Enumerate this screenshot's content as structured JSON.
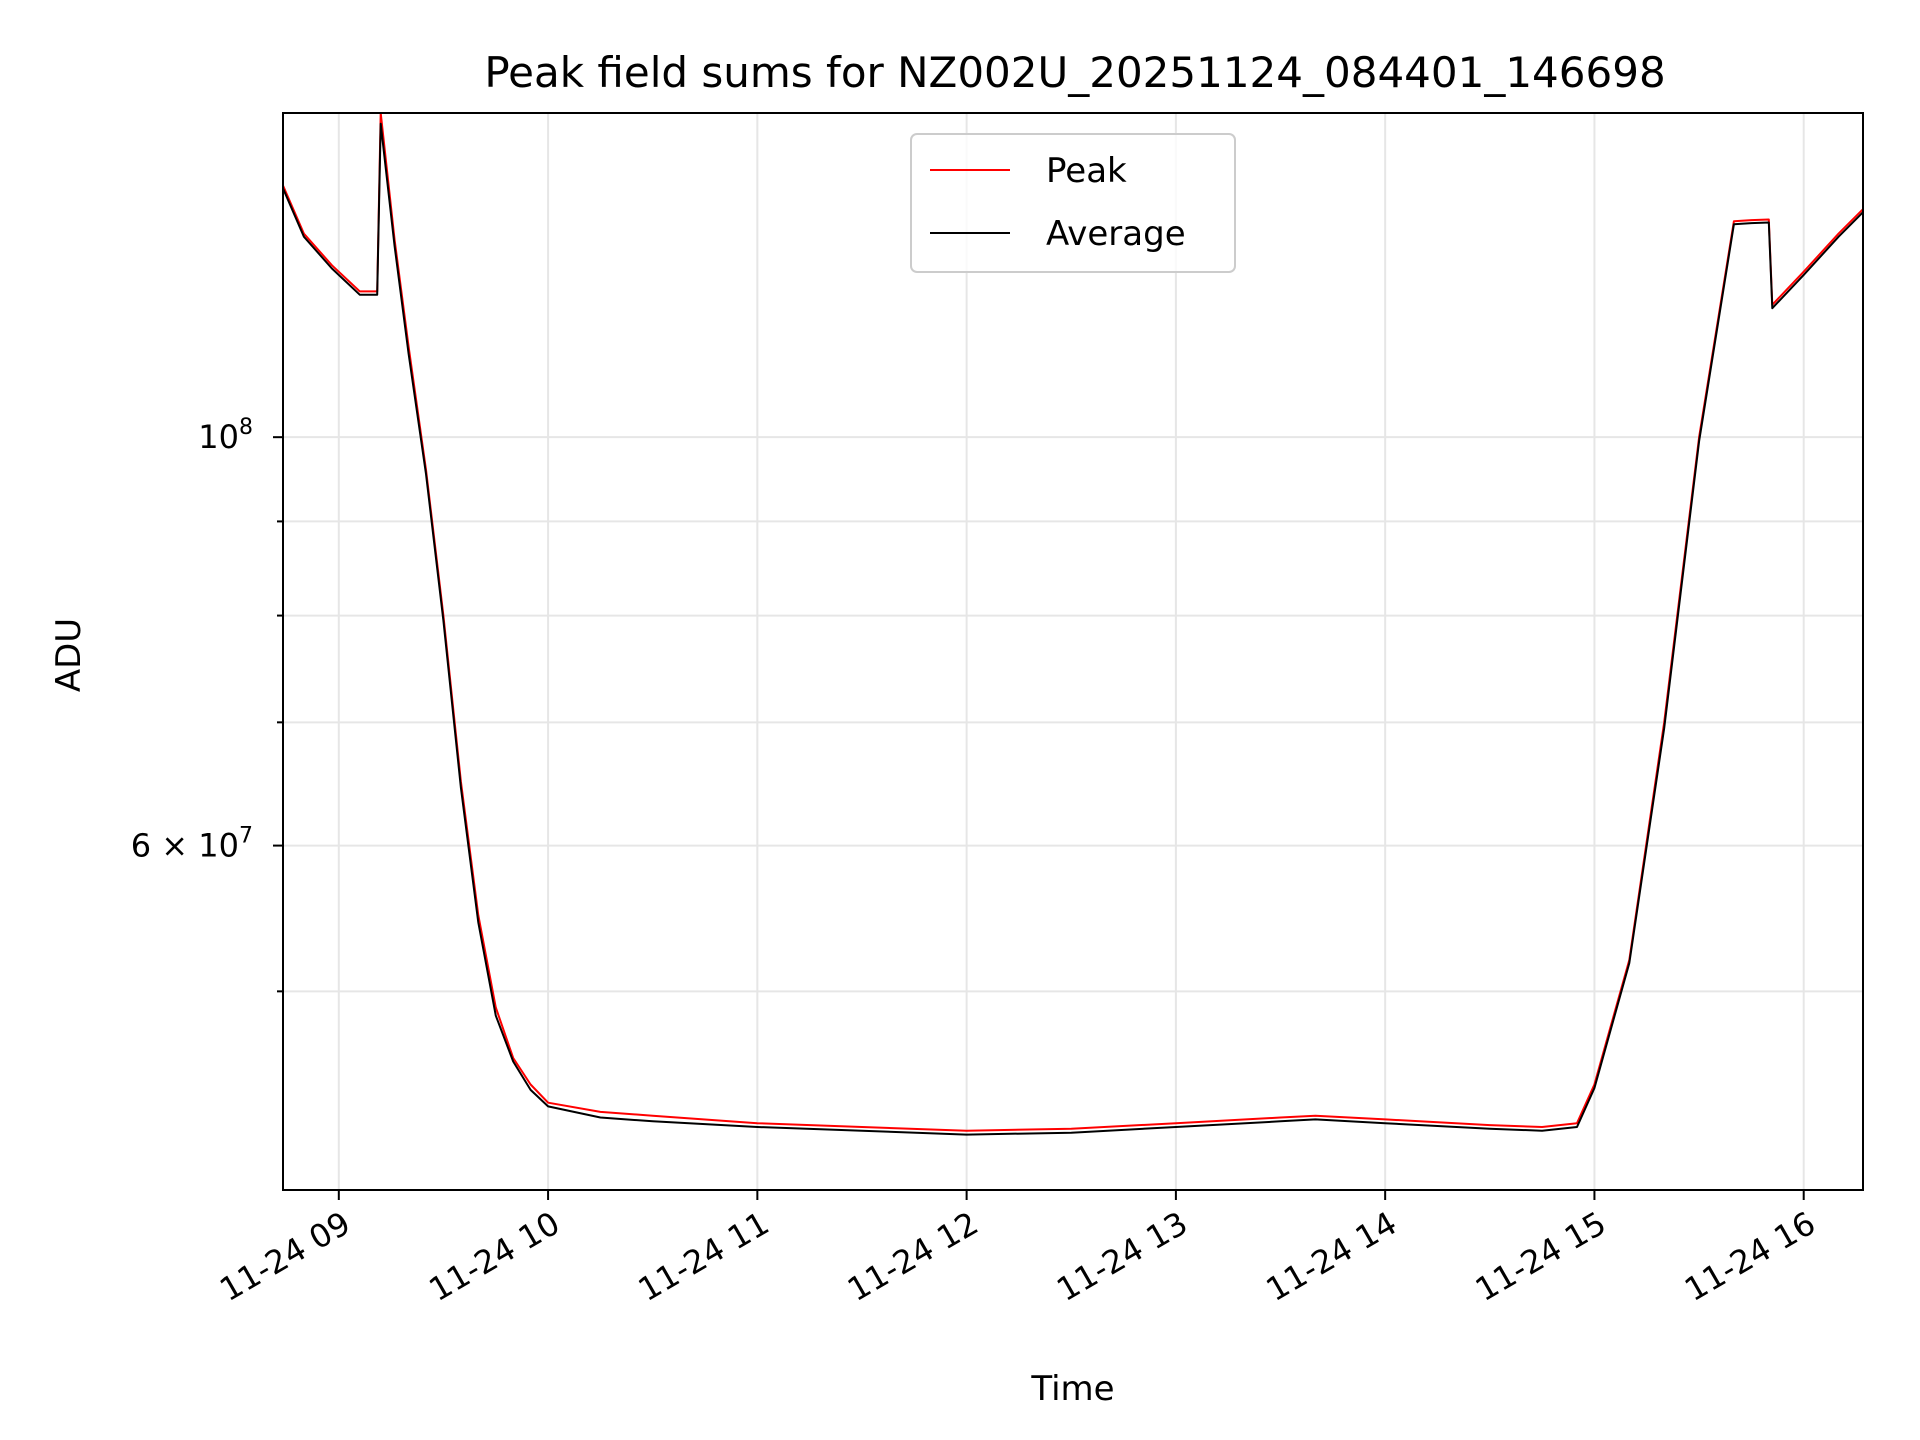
{
  "chart_data": {
    "type": "line",
    "title": "Peak field sums for NZ002U_20251124_084401_146698",
    "xlabel": "Time",
    "ylabel": "ADU",
    "y_scale": "log",
    "ylim": [
      39000000,
      150000000
    ],
    "xlim": [
      "2025-11-24 08:44",
      "2025-11-24 16:17"
    ],
    "grid": true,
    "legend_position": "top-center",
    "x_ticks": [
      {
        "value": "2025-11-24 09:00",
        "label": "11-24 09"
      },
      {
        "value": "2025-11-24 10:00",
        "label": "11-24 10"
      },
      {
        "value": "2025-11-24 11:00",
        "label": "11-24 11"
      },
      {
        "value": "2025-11-24 12:00",
        "label": "11-24 12"
      },
      {
        "value": "2025-11-24 13:00",
        "label": "11-24 13"
      },
      {
        "value": "2025-11-24 14:00",
        "label": "11-24 14"
      },
      {
        "value": "2025-11-24 15:00",
        "label": "11-24 15"
      },
      {
        "value": "2025-11-24 16:00",
        "label": "11-24 16"
      }
    ],
    "y_major_ticks": [
      {
        "value": 100000000,
        "label_base": "10",
        "label_exp": "8"
      },
      {
        "value": 60000000,
        "label_base": "6 × 10",
        "label_exp": "7"
      }
    ],
    "y_minor_ticks": [
      50000000,
      70000000,
      80000000,
      90000000
    ],
    "series": [
      {
        "name": "Peak",
        "color": "#ff0000",
        "x": [
          "2025-11-24 08:44",
          "2025-11-24 08:50",
          "2025-11-24 08:58",
          "2025-11-24 09:06",
          "2025-11-24 09:11",
          "2025-11-24 09:12",
          "2025-11-24 09:16",
          "2025-11-24 09:20",
          "2025-11-24 09:25",
          "2025-11-24 09:30",
          "2025-11-24 09:35",
          "2025-11-24 09:40",
          "2025-11-24 09:45",
          "2025-11-24 09:50",
          "2025-11-24 09:55",
          "2025-11-24 10:00",
          "2025-11-24 10:15",
          "2025-11-24 10:30",
          "2025-11-24 11:00",
          "2025-11-24 11:30",
          "2025-11-24 12:00",
          "2025-11-24 12:30",
          "2025-11-24 13:00",
          "2025-11-24 13:30",
          "2025-11-24 13:40",
          "2025-11-24 14:00",
          "2025-11-24 14:30",
          "2025-11-24 14:45",
          "2025-11-24 14:55",
          "2025-11-24 15:00",
          "2025-11-24 15:10",
          "2025-11-24 15:20",
          "2025-11-24 15:30",
          "2025-11-24 15:40",
          "2025-11-24 15:45",
          "2025-11-24 15:50",
          "2025-11-24 15:51",
          "2025-11-24 16:00",
          "2025-11-24 16:10",
          "2025-11-24 16:17"
        ],
        "y": [
          137000000,
          129000000,
          124000000,
          120000000,
          120000000,
          150000000,
          128000000,
          112000000,
          96000000,
          80000000,
          65000000,
          55000000,
          49000000,
          46000000,
          44500000,
          43500000,
          43000000,
          42800000,
          42400000,
          42200000,
          42000000,
          42100000,
          42400000,
          42700000,
          42800000,
          42600000,
          42300000,
          42200000,
          42400000,
          44500000,
          52000000,
          70000000,
          100000000,
          131000000,
          131200000,
          131300000,
          118000000,
          123000000,
          129000000,
          133000000
        ]
      },
      {
        "name": "Average",
        "color": "#000000",
        "x": [
          "2025-11-24 08:44",
          "2025-11-24 08:50",
          "2025-11-24 08:58",
          "2025-11-24 09:06",
          "2025-11-24 09:11",
          "2025-11-24 09:12",
          "2025-11-24 09:16",
          "2025-11-24 09:20",
          "2025-11-24 09:25",
          "2025-11-24 09:30",
          "2025-11-24 09:35",
          "2025-11-24 09:40",
          "2025-11-24 09:45",
          "2025-11-24 09:50",
          "2025-11-24 09:55",
          "2025-11-24 10:00",
          "2025-11-24 10:15",
          "2025-11-24 10:30",
          "2025-11-24 11:00",
          "2025-11-24 11:30",
          "2025-11-24 12:00",
          "2025-11-24 12:30",
          "2025-11-24 13:00",
          "2025-11-24 13:30",
          "2025-11-24 13:40",
          "2025-11-24 14:00",
          "2025-11-24 14:30",
          "2025-11-24 14:45",
          "2025-11-24 14:55",
          "2025-11-24 15:00",
          "2025-11-24 15:10",
          "2025-11-24 15:20",
          "2025-11-24 15:30",
          "2025-11-24 15:40",
          "2025-11-24 15:45",
          "2025-11-24 15:50",
          "2025-11-24 15:51",
          "2025-11-24 16:00",
          "2025-11-24 16:10",
          "2025-11-24 16:17"
        ],
        "y": [
          136500000,
          128500000,
          123500000,
          119500000,
          119500000,
          148000000,
          127000000,
          111000000,
          95500000,
          79500000,
          64500000,
          54500000,
          48500000,
          45800000,
          44200000,
          43300000,
          42700000,
          42500000,
          42200000,
          42000000,
          41800000,
          41900000,
          42200000,
          42500000,
          42600000,
          42400000,
          42100000,
          42000000,
          42200000,
          44300000,
          51800000,
          69500000,
          99500000,
          130500000,
          130700000,
          130800000,
          117500000,
          122500000,
          128500000,
          132500000
        ]
      }
    ]
  }
}
